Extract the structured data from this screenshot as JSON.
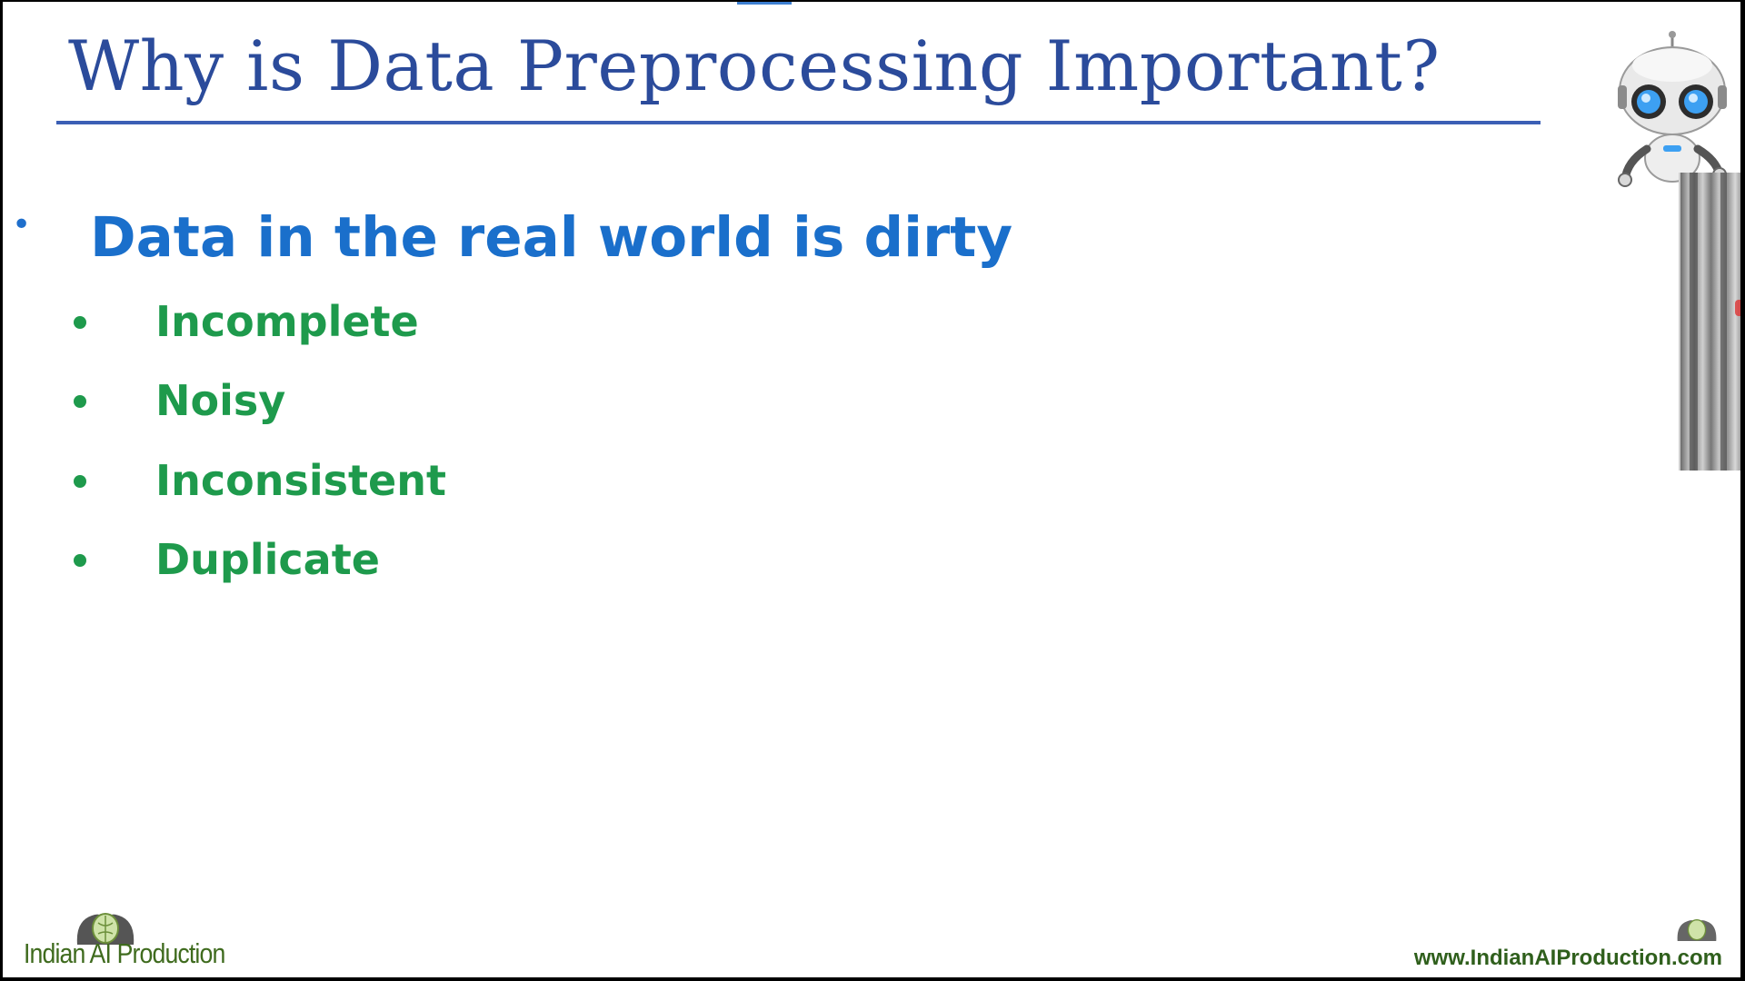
{
  "slide": {
    "title": "Why is Data Preprocessing Important?",
    "main_point": "Data in the real world is dirty",
    "sub_points": [
      "Incomplete",
      "Noisy",
      "Inconsistent",
      "Duplicate"
    ]
  },
  "footer": {
    "brand_name": "Indian AI Production",
    "website": "www.IndianAIProduction.com"
  },
  "colors": {
    "title": "#2b4b9b",
    "main_point": "#1a6fcb",
    "sub_points": "#1e9a4c",
    "brand": "#3f6b1e"
  },
  "icons": {
    "robot": "robot-mascot-icon",
    "brand": "brain-heads-logo-icon"
  }
}
